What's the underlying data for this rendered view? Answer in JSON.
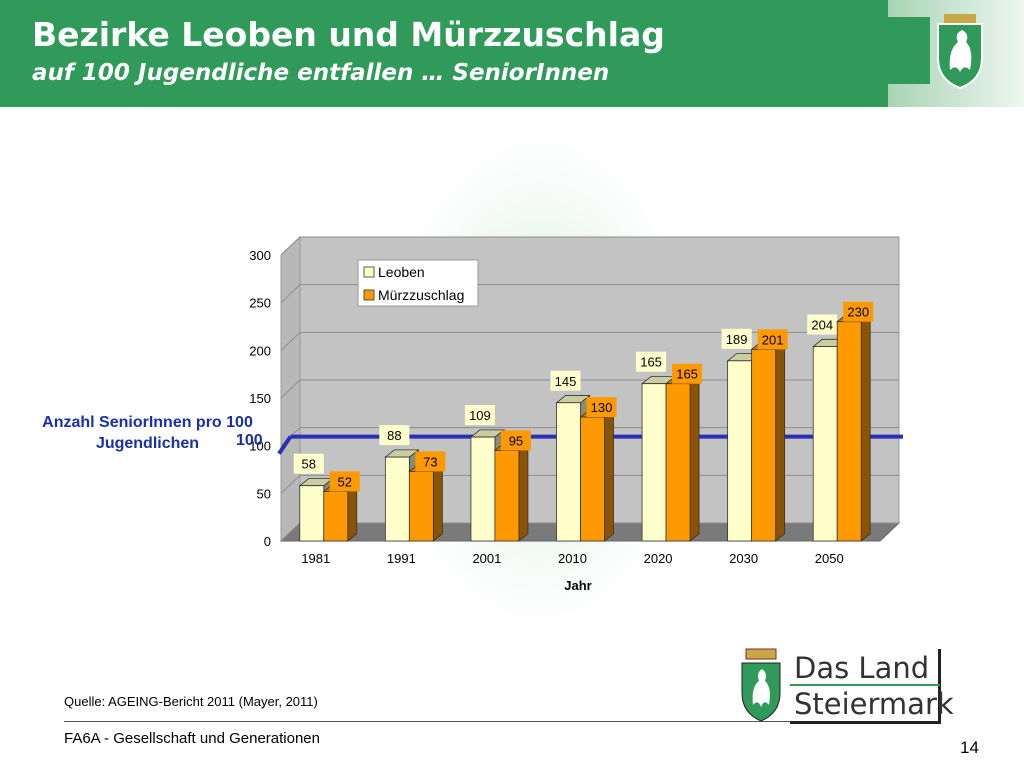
{
  "header": {
    "title": "Bezirke Leoben und Mürzzuschlag",
    "subtitle": "auf 100 Jugendliche entfallen … SeniorInnen"
  },
  "annotation": {
    "label": "Anzahl SeniorInnen pro 100 Jugendlichen",
    "value": "100"
  },
  "chart_data": {
    "type": "bar",
    "categories": [
      "1981",
      "1991",
      "2001",
      "2010",
      "2020",
      "2030",
      "2050"
    ],
    "series": [
      {
        "name": "Leoben",
        "values": [
          58,
          88,
          109,
          145,
          165,
          189,
          204
        ],
        "color": "#ffffcc"
      },
      {
        "name": "Mürzzuschlag",
        "values": [
          52,
          73,
          95,
          130,
          165,
          201,
          230
        ],
        "color": "#ff9900"
      }
    ],
    "xlabel": "Jahr",
    "ylabel": "",
    "ylim": [
      0,
      300
    ],
    "yticks": [
      0,
      50,
      100,
      150,
      200,
      250,
      300
    ],
    "reference_line": 100,
    "reference_color": "#2b2fb5",
    "grid": true,
    "legend_position": "top-left",
    "style": "3d"
  },
  "footer": {
    "source": "Quelle: AGEING-Bericht 2011 (Mayer, 2011)",
    "department": "FA6A - Gesellschaft und Generationen",
    "page": "14"
  },
  "logo": {
    "line1": "Das Land",
    "line2": "Steiermark"
  },
  "colors": {
    "brand_green": "#2f9a5a"
  }
}
